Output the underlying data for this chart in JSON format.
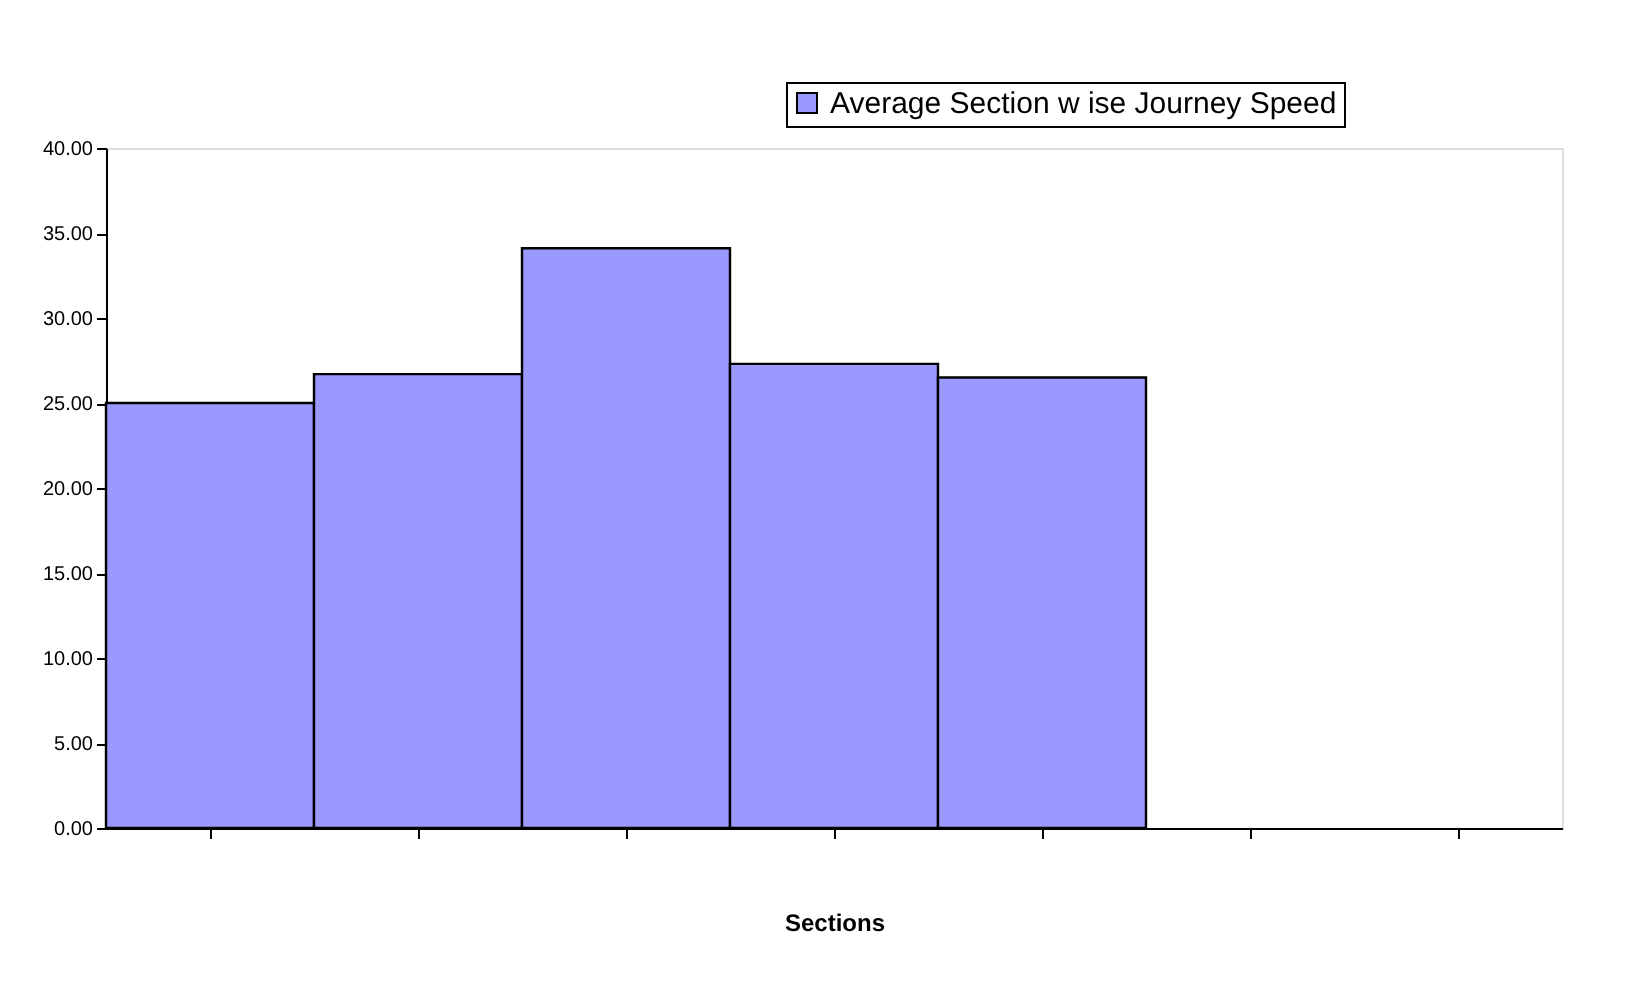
{
  "chart_data": {
    "type": "bar",
    "xlabel": "Sections",
    "categories": [
      null,
      null,
      null,
      null,
      null,
      null,
      null
    ],
    "series": [
      {
        "name": "Average Section w ise Journey Speed",
        "color": "#9999ff",
        "values": [
          25.0,
          26.7,
          34.1,
          27.3,
          26.5,
          null,
          null
        ]
      }
    ],
    "ylim": [
      0,
      40
    ],
    "yticks": [
      {
        "value": 0,
        "label": "0.00"
      },
      {
        "value": 5,
        "label": "5.00"
      },
      {
        "value": 10,
        "label": "10.00"
      },
      {
        "value": 15,
        "label": "15.00"
      },
      {
        "value": 20,
        "label": "20.00"
      },
      {
        "value": 25,
        "label": "25.00"
      },
      {
        "value": 30,
        "label": "30.00"
      },
      {
        "value": 35,
        "label": "35.00"
      },
      {
        "value": 40,
        "label": "40.00"
      }
    ],
    "grid": false,
    "legend": "top right"
  }
}
